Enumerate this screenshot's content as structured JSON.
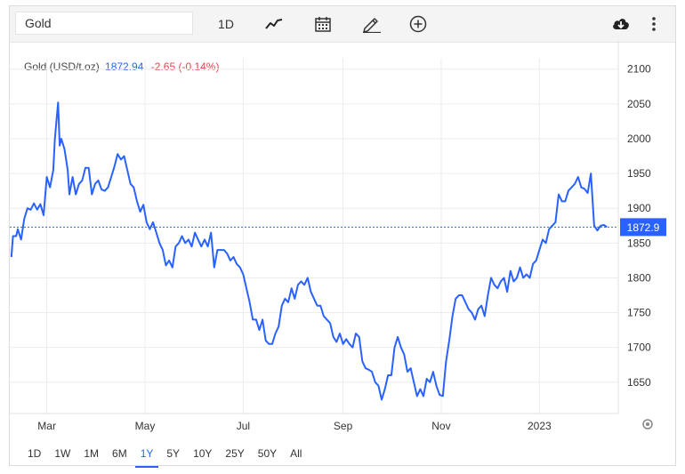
{
  "toolbar": {
    "symbol_value": "Gold",
    "interval_label": "1D",
    "icons": [
      "line-chart-style-icon",
      "calendar-icon",
      "pencil-draw-icon",
      "add-indicator-icon",
      "download-cloud-icon",
      "more-vertical-icon"
    ]
  },
  "legend": {
    "name": "Gold (USD/t.oz)",
    "price": "1872.94",
    "change": "-2.65 (-0.14%)"
  },
  "colors": {
    "line": "#2962ff",
    "down": "#e0444b",
    "grid": "#ececec",
    "axis_text": "#333333"
  },
  "range_buttons": [
    "1D",
    "1W",
    "1M",
    "6M",
    "1Y",
    "5Y",
    "10Y",
    "25Y",
    "50Y",
    "All"
  ],
  "active_range": "1Y",
  "chart_data": {
    "type": "line",
    "title": "",
    "xlabel": "",
    "ylabel": "",
    "x_ticks": [
      {
        "label": "Mar",
        "date": "2022-03-01"
      },
      {
        "label": "May",
        "date": "2022-05-01"
      },
      {
        "label": "Jul",
        "date": "2022-07-01"
      },
      {
        "label": "Sep",
        "date": "2022-09-01"
      },
      {
        "label": "Nov",
        "date": "2022-11-01"
      },
      {
        "label": "2023",
        "date": "2023-01-01"
      }
    ],
    "y_ticks": [
      1650,
      1700,
      1750,
      1800,
      1850,
      1900,
      1950,
      2000,
      2050,
      2100
    ],
    "ylim": [
      1605,
      2115
    ],
    "xlim": [
      "2022-02-06",
      "2023-02-19"
    ],
    "last_value_label": "1872.9",
    "last_value": 1872.94,
    "grid": true,
    "series": [
      {
        "name": "Gold (USD/t.oz)",
        "points": [
          [
            "2022-02-07",
            1830
          ],
          [
            "2022-02-08",
            1860
          ],
          [
            "2022-02-10",
            1860
          ],
          [
            "2022-02-11",
            1870
          ],
          [
            "2022-02-13",
            1855
          ],
          [
            "2022-02-15",
            1885
          ],
          [
            "2022-02-17",
            1900
          ],
          [
            "2022-02-19",
            1898
          ],
          [
            "2022-02-21",
            1907
          ],
          [
            "2022-02-23",
            1898
          ],
          [
            "2022-02-25",
            1906
          ],
          [
            "2022-02-27",
            1890
          ],
          [
            "2022-03-01",
            1945
          ],
          [
            "2022-03-03",
            1930
          ],
          [
            "2022-03-05",
            1955
          ],
          [
            "2022-03-06",
            2000
          ],
          [
            "2022-03-08",
            2052
          ],
          [
            "2022-03-09",
            1990
          ],
          [
            "2022-03-10",
            2000
          ],
          [
            "2022-03-12",
            1985
          ],
          [
            "2022-03-14",
            1955
          ],
          [
            "2022-03-15",
            1920
          ],
          [
            "2022-03-17",
            1945
          ],
          [
            "2022-03-19",
            1920
          ],
          [
            "2022-03-21",
            1935
          ],
          [
            "2022-03-23",
            1940
          ],
          [
            "2022-03-25",
            1958
          ],
          [
            "2022-03-27",
            1958
          ],
          [
            "2022-03-29",
            1920
          ],
          [
            "2022-03-31",
            1935
          ],
          [
            "2022-04-02",
            1940
          ],
          [
            "2022-04-04",
            1927
          ],
          [
            "2022-04-06",
            1925
          ],
          [
            "2022-04-08",
            1930
          ],
          [
            "2022-04-10",
            1945
          ],
          [
            "2022-04-12",
            1960
          ],
          [
            "2022-04-14",
            1978
          ],
          [
            "2022-04-16",
            1970
          ],
          [
            "2022-04-18",
            1975
          ],
          [
            "2022-04-20",
            1955
          ],
          [
            "2022-04-22",
            1935
          ],
          [
            "2022-04-24",
            1930
          ],
          [
            "2022-04-26",
            1910
          ],
          [
            "2022-04-28",
            1895
          ],
          [
            "2022-04-30",
            1905
          ],
          [
            "2022-05-02",
            1880
          ],
          [
            "2022-05-04",
            1870
          ],
          [
            "2022-05-06",
            1880
          ],
          [
            "2022-05-08",
            1865
          ],
          [
            "2022-05-10",
            1850
          ],
          [
            "2022-05-12",
            1840
          ],
          [
            "2022-05-14",
            1818
          ],
          [
            "2022-05-16",
            1825
          ],
          [
            "2022-05-18",
            1815
          ],
          [
            "2022-05-20",
            1845
          ],
          [
            "2022-05-22",
            1850
          ],
          [
            "2022-05-24",
            1860
          ],
          [
            "2022-05-26",
            1850
          ],
          [
            "2022-05-28",
            1855
          ],
          [
            "2022-05-30",
            1845
          ],
          [
            "2022-06-01",
            1865
          ],
          [
            "2022-06-03",
            1855
          ],
          [
            "2022-06-05",
            1845
          ],
          [
            "2022-06-07",
            1855
          ],
          [
            "2022-06-09",
            1845
          ],
          [
            "2022-06-11",
            1865
          ],
          [
            "2022-06-13",
            1815
          ],
          [
            "2022-06-15",
            1840
          ],
          [
            "2022-06-17",
            1840
          ],
          [
            "2022-06-19",
            1840
          ],
          [
            "2022-06-21",
            1835
          ],
          [
            "2022-06-23",
            1825
          ],
          [
            "2022-06-25",
            1830
          ],
          [
            "2022-06-27",
            1820
          ],
          [
            "2022-06-29",
            1815
          ],
          [
            "2022-07-01",
            1805
          ],
          [
            "2022-07-03",
            1785
          ],
          [
            "2022-07-05",
            1765
          ],
          [
            "2022-07-07",
            1740
          ],
          [
            "2022-07-09",
            1740
          ],
          [
            "2022-07-11",
            1725
          ],
          [
            "2022-07-13",
            1740
          ],
          [
            "2022-07-15",
            1710
          ],
          [
            "2022-07-17",
            1705
          ],
          [
            "2022-07-19",
            1705
          ],
          [
            "2022-07-21",
            1720
          ],
          [
            "2022-07-23",
            1730
          ],
          [
            "2022-07-25",
            1760
          ],
          [
            "2022-07-27",
            1770
          ],
          [
            "2022-07-29",
            1765
          ],
          [
            "2022-07-31",
            1785
          ],
          [
            "2022-08-02",
            1770
          ],
          [
            "2022-08-04",
            1790
          ],
          [
            "2022-08-06",
            1795
          ],
          [
            "2022-08-08",
            1790
          ],
          [
            "2022-08-10",
            1800
          ],
          [
            "2022-08-12",
            1780
          ],
          [
            "2022-08-14",
            1770
          ],
          [
            "2022-08-16",
            1760
          ],
          [
            "2022-08-18",
            1760
          ],
          [
            "2022-08-20",
            1745
          ],
          [
            "2022-08-22",
            1740
          ],
          [
            "2022-08-24",
            1735
          ],
          [
            "2022-08-26",
            1715
          ],
          [
            "2022-08-28",
            1708
          ],
          [
            "2022-08-30",
            1720
          ],
          [
            "2022-09-01",
            1705
          ],
          [
            "2022-09-03",
            1712
          ],
          [
            "2022-09-05",
            1705
          ],
          [
            "2022-09-07",
            1700
          ],
          [
            "2022-09-09",
            1720
          ],
          [
            "2022-09-11",
            1715
          ],
          [
            "2022-09-13",
            1680
          ],
          [
            "2022-09-15",
            1670
          ],
          [
            "2022-09-17",
            1668
          ],
          [
            "2022-09-19",
            1665
          ],
          [
            "2022-09-21",
            1650
          ],
          [
            "2022-09-23",
            1645
          ],
          [
            "2022-09-25",
            1625
          ],
          [
            "2022-09-27",
            1640
          ],
          [
            "2022-09-29",
            1660
          ],
          [
            "2022-10-01",
            1660
          ],
          [
            "2022-10-03",
            1700
          ],
          [
            "2022-10-05",
            1715
          ],
          [
            "2022-10-07",
            1700
          ],
          [
            "2022-10-09",
            1690
          ],
          [
            "2022-10-11",
            1665
          ],
          [
            "2022-10-13",
            1670
          ],
          [
            "2022-10-15",
            1650
          ],
          [
            "2022-10-17",
            1630
          ],
          [
            "2022-10-19",
            1640
          ],
          [
            "2022-10-21",
            1630
          ],
          [
            "2022-10-23",
            1655
          ],
          [
            "2022-10-25",
            1650
          ],
          [
            "2022-10-27",
            1665
          ],
          [
            "2022-10-29",
            1645
          ],
          [
            "2022-10-31",
            1632
          ],
          [
            "2022-11-02",
            1630
          ],
          [
            "2022-11-04",
            1680
          ],
          [
            "2022-11-06",
            1710
          ],
          [
            "2022-11-08",
            1745
          ],
          [
            "2022-11-10",
            1770
          ],
          [
            "2022-11-12",
            1775
          ],
          [
            "2022-11-14",
            1775
          ],
          [
            "2022-11-16",
            1765
          ],
          [
            "2022-11-18",
            1755
          ],
          [
            "2022-11-20",
            1750
          ],
          [
            "2022-11-22",
            1740
          ],
          [
            "2022-11-24",
            1755
          ],
          [
            "2022-11-26",
            1760
          ],
          [
            "2022-11-28",
            1745
          ],
          [
            "2022-11-30",
            1775
          ],
          [
            "2022-12-02",
            1800
          ],
          [
            "2022-12-04",
            1790
          ],
          [
            "2022-12-06",
            1785
          ],
          [
            "2022-12-08",
            1795
          ],
          [
            "2022-12-10",
            1800
          ],
          [
            "2022-12-12",
            1780
          ],
          [
            "2022-12-14",
            1810
          ],
          [
            "2022-12-16",
            1795
          ],
          [
            "2022-12-18",
            1800
          ],
          [
            "2022-12-20",
            1815
          ],
          [
            "2022-12-22",
            1800
          ],
          [
            "2022-12-24",
            1805
          ],
          [
            "2022-12-26",
            1800
          ],
          [
            "2022-12-28",
            1820
          ],
          [
            "2022-12-30",
            1825
          ],
          [
            "2023-01-01",
            1840
          ],
          [
            "2023-01-03",
            1855
          ],
          [
            "2023-01-05",
            1850
          ],
          [
            "2023-01-07",
            1870
          ],
          [
            "2023-01-09",
            1875
          ],
          [
            "2023-01-11",
            1880
          ],
          [
            "2023-01-13",
            1920
          ],
          [
            "2023-01-15",
            1910
          ],
          [
            "2023-01-17",
            1910
          ],
          [
            "2023-01-19",
            1925
          ],
          [
            "2023-01-21",
            1930
          ],
          [
            "2023-01-23",
            1935
          ],
          [
            "2023-01-25",
            1945
          ],
          [
            "2023-01-27",
            1930
          ],
          [
            "2023-01-29",
            1928
          ],
          [
            "2023-01-31",
            1922
          ],
          [
            "2023-02-02",
            1950
          ],
          [
            "2023-02-04",
            1875
          ],
          [
            "2023-02-06",
            1868
          ],
          [
            "2023-02-08",
            1875
          ],
          [
            "2023-02-10",
            1876
          ],
          [
            "2023-02-12",
            1873
          ]
        ]
      }
    ]
  }
}
